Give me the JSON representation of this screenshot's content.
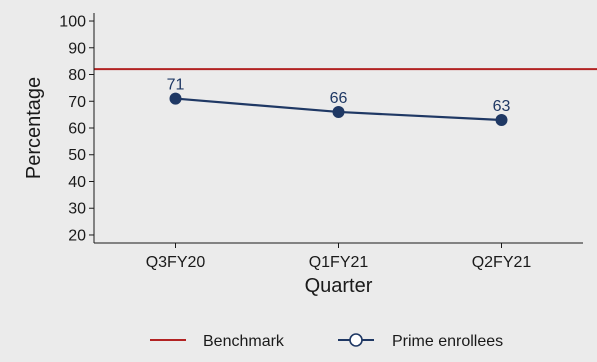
{
  "chart_data": {
    "type": "line",
    "title": "",
    "xlabel": "Quarter",
    "ylabel": "Percentage",
    "categories": [
      "Q3FY20",
      "Q1FY21",
      "Q2FY21"
    ],
    "ylim": [
      17,
      103
    ],
    "yticks": [
      20,
      30,
      40,
      50,
      60,
      70,
      80,
      90,
      100
    ],
    "grid": false,
    "legend_position": "bottom",
    "series": [
      {
        "name": "Prime enrollees",
        "values": [
          71,
          66,
          63
        ],
        "data_labels": [
          "71",
          "66",
          "63"
        ],
        "color": "#1f3864"
      }
    ],
    "reference_lines": [
      {
        "name": "Benchmark",
        "y": 82,
        "color": "#b22222"
      }
    ],
    "legend": [
      {
        "label": "Benchmark",
        "kind": "line",
        "color": "#b22222"
      },
      {
        "label": "Prime enrollees",
        "kind": "line-marker",
        "color": "#1f3864"
      }
    ],
    "colors": {
      "panel_background": "#ebebeb",
      "page_background": "#ffffff",
      "axis": "#1a1a1a"
    }
  }
}
